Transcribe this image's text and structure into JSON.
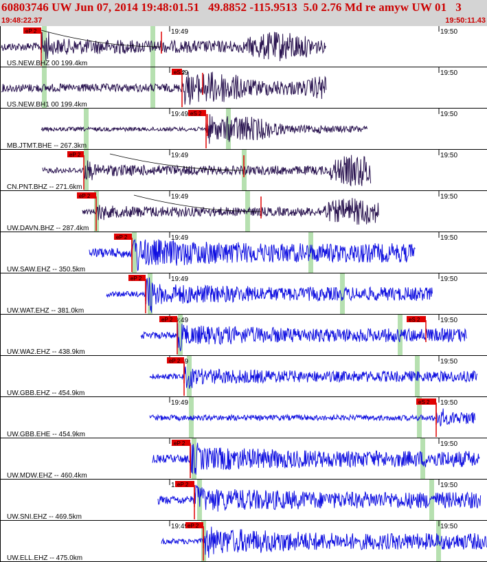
{
  "header": {
    "title": "60803746 UW Jun 07, 2014 19:48:01.51   49.8852 -115.9513  5.0 2.76 Md re amyw UW 01   3",
    "time_start": "19:48:22.37",
    "time_end": "19:50:11.43"
  },
  "colors": {
    "header_bg": "#d4d4d4",
    "text_red": "#cc0000",
    "trace_dark": "#2a1450",
    "trace_blue": "#1010e0",
    "pick_red": "#e00000",
    "window_green": "#b6e0b0"
  },
  "time_markers": {
    "minute_1": "19:49",
    "minute_2": "19:50"
  },
  "traces": [
    {
      "label": "US.NEW.BHZ 00 199.4km",
      "color": "dark",
      "pick_label": "eP 2"
    },
    {
      "label": "US.NEW.BH1 00 199.4km",
      "color": "dark",
      "pick_label": "eS 2"
    },
    {
      "label": "MB.JTMT.BHE -- 267.3km",
      "color": "dark",
      "pick_label": "eS 2"
    },
    {
      "label": "CN.PNT.BHZ -- 271.6km",
      "color": "dark",
      "pick_label": "eP 2"
    },
    {
      "label": "UW.DAVN.BHZ -- 287.4km",
      "color": "dark",
      "pick_label": "eP 2"
    },
    {
      "label": "UW.SAW.EHZ -- 350.5km",
      "color": "blue",
      "pick_label": "eP 2"
    },
    {
      "label": "UW.WAT.EHZ -- 381.0km",
      "color": "blue",
      "pick_label": "eP 2"
    },
    {
      "label": "UW.WA2.EHZ -- 438.9km",
      "color": "blue",
      "pick_label": "eP 2",
      "pick_label_2": "eS 2"
    },
    {
      "label": "UW.GBB.EHZ -- 454.9km",
      "color": "blue",
      "pick_label": "eP 2"
    },
    {
      "label": "UW.GBB.EHE -- 454.9km",
      "color": "blue",
      "pick_label": "eS 2"
    },
    {
      "label": "UW.MDW.EHZ -- 460.4km",
      "color": "blue",
      "pick_label": "eP 2"
    },
    {
      "label": "UW.SNI.EHZ -- 469.5km",
      "color": "blue",
      "pick_label": "eP 2"
    },
    {
      "label": "UW.ELL.EHZ -- 475.0km",
      "color": "blue",
      "pick_label": "eP 2"
    }
  ]
}
